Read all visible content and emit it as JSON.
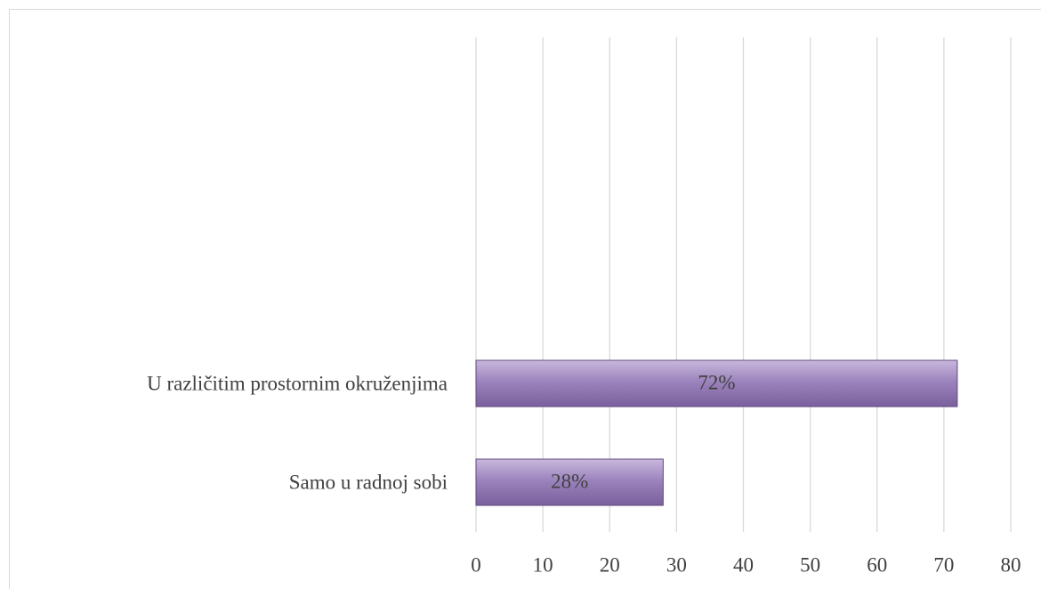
{
  "chart_data": {
    "type": "bar",
    "orientation": "horizontal",
    "categories": [
      "U različitim prostornim okruženjima",
      "Samo u radnoj sobi"
    ],
    "values": [
      72,
      28
    ],
    "value_labels": [
      "72%",
      "28%"
    ],
    "color": "#8064a2",
    "xlim": [
      0,
      80
    ],
    "xticks": [
      0,
      10,
      20,
      30,
      40,
      50,
      60,
      70,
      80
    ],
    "grid": true
  }
}
